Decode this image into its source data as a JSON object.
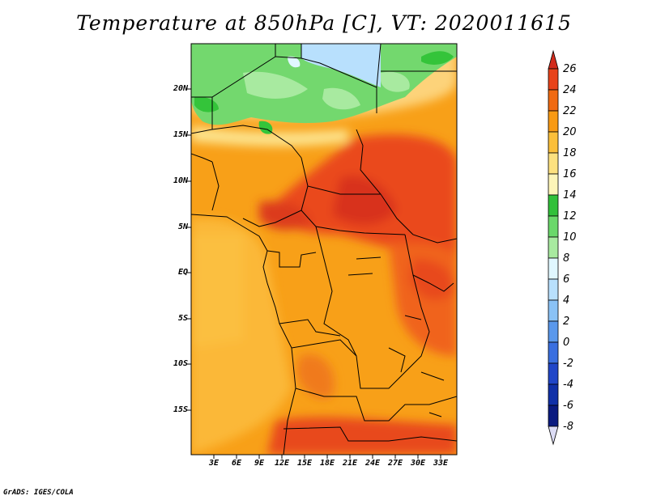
{
  "title": "Temperature at 850hPa [C], VT: 2020011615",
  "credit": "GrADS: IGES/COLA",
  "map": {
    "lat_labels": [
      "20N",
      "15N",
      "10N",
      "5N",
      "EQ",
      "5S",
      "10S",
      "15S"
    ],
    "lon_labels": [
      "3E",
      "6E",
      "9E",
      "12E",
      "15E",
      "18E",
      "21E",
      "24E",
      "27E",
      "30E",
      "33E"
    ]
  },
  "colorbar": {
    "labels": [
      "26",
      "24",
      "22",
      "20",
      "18",
      "16",
      "14",
      "12",
      "10",
      "8",
      "6",
      "4",
      "2",
      "0",
      "-2",
      "-4",
      "-6",
      "-8"
    ],
    "colors": [
      "#d22b1c",
      "#e8431a",
      "#f06a12",
      "#f89a14",
      "#fbbf3a",
      "#fde17f",
      "#fdf5b8",
      "#31c03a",
      "#6ad86a",
      "#a8eaa0",
      "#e0f7ff",
      "#b8e0fd",
      "#8ac2f6",
      "#5a98ec",
      "#3a6fe0",
      "#2046c8",
      "#1030a8",
      "#0a1a80",
      "#05105a"
    ]
  }
}
